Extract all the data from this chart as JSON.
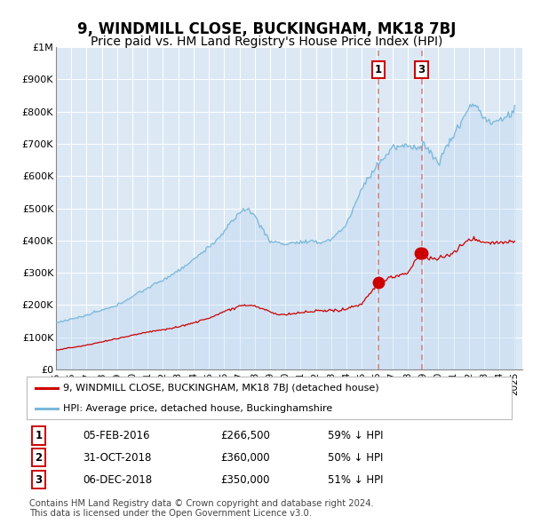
{
  "title": "9, WINDMILL CLOSE, BUCKINGHAM, MK18 7BJ",
  "subtitle": "Price paid vs. HM Land Registry's House Price Index (HPI)",
  "title_fontsize": 12,
  "subtitle_fontsize": 10,
  "background_color": "#ffffff",
  "plot_bg_color": "#dce9f5",
  "grid_color": "#ffffff",
  "hpi_color": "#7ab8d9",
  "price_color": "#cc0000",
  "marker_color": "#cc0000",
  "vline_color": "#d08080",
  "annotation_box_color": "#cc0000",
  "ylim": [
    0,
    1000000
  ],
  "yticks": [
    0,
    100000,
    200000,
    300000,
    400000,
    500000,
    600000,
    700000,
    800000,
    900000,
    1000000
  ],
  "ytick_labels": [
    "£0",
    "£100K",
    "£200K",
    "£300K",
    "£400K",
    "£500K",
    "£600K",
    "£700K",
    "£800K",
    "£900K",
    "£1M"
  ],
  "xticks": [
    1995,
    1996,
    1997,
    1998,
    1999,
    2000,
    2001,
    2002,
    2003,
    2004,
    2005,
    2006,
    2007,
    2008,
    2009,
    2010,
    2011,
    2012,
    2013,
    2014,
    2015,
    2016,
    2017,
    2018,
    2019,
    2020,
    2021,
    2022,
    2023,
    2024,
    2025
  ],
  "xmin": 1995,
  "xmax": 2025.5,
  "transactions": [
    {
      "label": "1",
      "date_x": 2016.09,
      "price": 266500
    },
    {
      "label": "2",
      "date_x": 2018.83,
      "price": 360000
    },
    {
      "label": "3",
      "date_x": 2018.92,
      "price": 350000
    }
  ],
  "vlines": [
    2016.09,
    2018.92
  ],
  "legend_entries": [
    "9, WINDMILL CLOSE, BUCKINGHAM, MK18 7BJ (detached house)",
    "HPI: Average price, detached house, Buckinghamshire"
  ],
  "table_rows": [
    {
      "num": "1",
      "date": "05-FEB-2016",
      "price": "£266,500",
      "pct": "59% ↓ HPI"
    },
    {
      "num": "2",
      "date": "31-OCT-2018",
      "price": "£360,000",
      "pct": "50% ↓ HPI"
    },
    {
      "num": "3",
      "date": "06-DEC-2018",
      "price": "£350,000",
      "pct": "51% ↓ HPI"
    }
  ],
  "footnote": "Contains HM Land Registry data © Crown copyright and database right 2024.\nThis data is licensed under the Open Government Licence v3.0."
}
